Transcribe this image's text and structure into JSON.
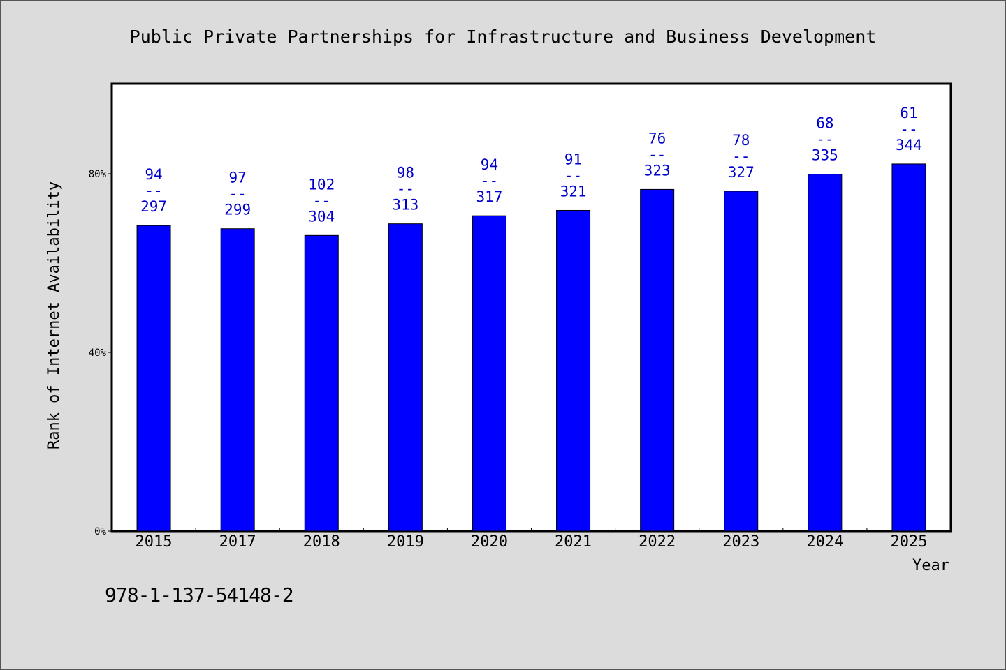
{
  "chart_data": {
    "type": "bar",
    "title": "Public Private Partnerships for Infrastructure and Business Development",
    "xlabel": "Year",
    "ylabel": "Rank of Internet Availability",
    "ylim": [
      0,
      100
    ],
    "yticks": [
      {
        "value": 0,
        "label": "0%"
      },
      {
        "value": 40,
        "label": "40%"
      },
      {
        "value": 80,
        "label": "80%"
      }
    ],
    "grid": false,
    "legend": "none",
    "categories": [
      "2015",
      "2017",
      "2018",
      "2019",
      "2020",
      "2021",
      "2022",
      "2023",
      "2024",
      "2025"
    ],
    "values": [
      68.4,
      67.7,
      66.2,
      68.8,
      70.6,
      71.8,
      76.5,
      76.1,
      79.9,
      82.2
    ],
    "bar_labels": [
      {
        "top": "94",
        "sep": "--",
        "bottom": "297"
      },
      {
        "top": "97",
        "sep": "--",
        "bottom": "299"
      },
      {
        "top": "102",
        "sep": "--",
        "bottom": "304"
      },
      {
        "top": "98",
        "sep": "--",
        "bottom": "313"
      },
      {
        "top": "94",
        "sep": "--",
        "bottom": "317"
      },
      {
        "top": "91",
        "sep": "--",
        "bottom": "321"
      },
      {
        "top": "76",
        "sep": "--",
        "bottom": "323"
      },
      {
        "top": "78",
        "sep": "--",
        "bottom": "327"
      },
      {
        "top": "68",
        "sep": "--",
        "bottom": "335"
      },
      {
        "top": "61",
        "sep": "--",
        "bottom": "344"
      }
    ],
    "colors": {
      "bar": "#0000ff",
      "label": "#0000cc",
      "background": "#dcdcdc",
      "plot": "#ffffff"
    }
  },
  "caption": "978-1-137-54148-2"
}
